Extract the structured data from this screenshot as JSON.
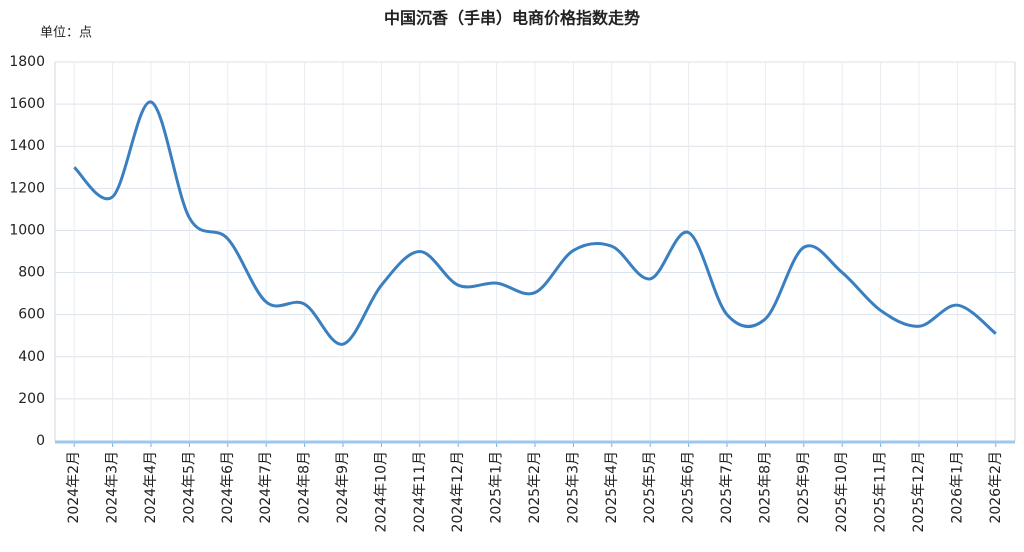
{
  "chart_data": {
    "type": "line",
    "title": "中国沉香（手串）电商价格指数走势",
    "unit": "单位：点",
    "categories": [
      "2024年2月",
      "2024年3月",
      "2024年4月",
      "2024年5月",
      "2024年6月",
      "2024年7月",
      "2024年8月",
      "2024年9月",
      "2024年10月",
      "2024年11月",
      "2024年12月",
      "2025年1月",
      "2025年2月",
      "2025年3月",
      "2025年4月",
      "2025年5月",
      "2025年6月",
      "2025年7月",
      "2025年8月",
      "2025年9月",
      "2025年10月",
      "2025年11月",
      "2025年12月",
      "2026年1月",
      "2026年2月"
    ],
    "values": [
      1300,
      1160,
      1610,
      1060,
      960,
      660,
      650,
      460,
      740,
      900,
      740,
      750,
      705,
      905,
      925,
      770,
      990,
      600,
      580,
      920,
      800,
      620,
      545,
      645,
      510
    ],
    "color": "#3a7fc0",
    "ylim": [
      0,
      1800
    ],
    "yticks": [
      0,
      200,
      400,
      600,
      800,
      1000,
      1200,
      1400,
      1600,
      1800
    ],
    "grid": true
  }
}
